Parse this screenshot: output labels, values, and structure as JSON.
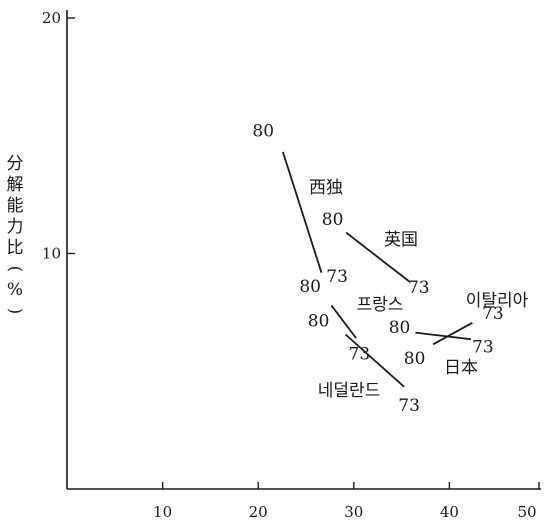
{
  "chart_data": {
    "type": "line",
    "title": "",
    "xlabel": "",
    "ylabel": "分解能力比(%)",
    "xlim": [
      0,
      50
    ],
    "ylim": [
      0,
      20
    ],
    "x_ticks": [
      {
        "value": 10,
        "label": "10"
      },
      {
        "value": 20,
        "label": "20"
      },
      {
        "value": 30,
        "label": "30"
      },
      {
        "value": 40,
        "label": "40"
      },
      {
        "value": 50,
        "label": "50"
      }
    ],
    "y_ticks": [
      {
        "value": 10,
        "label": "10"
      },
      {
        "value": 20,
        "label": "20"
      }
    ],
    "grid": false,
    "legend": "none",
    "series": [
      {
        "name": "西独",
        "points": [
          {
            "x": 22.2,
            "y": 14.8,
            "label": "80"
          },
          {
            "x": 27.0,
            "y": 8.7,
            "label": "73"
          }
        ]
      },
      {
        "name": "英国",
        "points": [
          {
            "x": 28.2,
            "y": 11.2,
            "label": "80"
          },
          {
            "x": 36.8,
            "y": 8.5,
            "label": "73"
          }
        ]
      },
      {
        "name": "프랑스",
        "points": [
          {
            "x": 26.9,
            "y": 8.2,
            "label": "80"
          },
          {
            "x": 31.0,
            "y": 6.0,
            "label": "73"
          }
        ]
      },
      {
        "name": "日本",
        "points": [
          {
            "x": 35.2,
            "y": 6.7,
            "label": "80"
          },
          {
            "x": 43.5,
            "y": 6.3,
            "label": "73"
          }
        ]
      },
      {
        "name": "이탈리아",
        "points": [
          {
            "x": 37.2,
            "y": 5.9,
            "label": "80"
          },
          {
            "x": 43.5,
            "y": 7.3,
            "label": "73"
          }
        ]
      },
      {
        "name": "네덜란드",
        "points": [
          {
            "x": 28.2,
            "y": 6.9,
            "label": "80"
          },
          {
            "x": 36.2,
            "y": 4.0,
            "label": "73"
          }
        ]
      }
    ]
  }
}
